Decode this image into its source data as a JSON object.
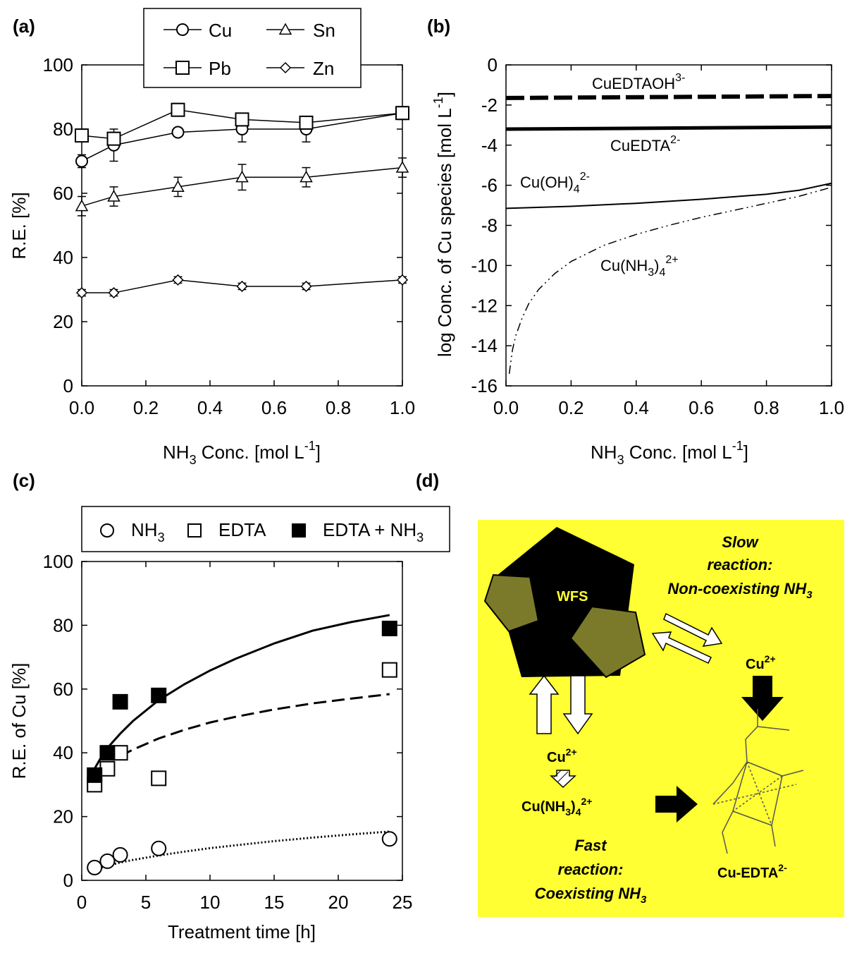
{
  "chart_data": [
    {
      "panel": "(a)",
      "type": "line",
      "xlabel": "NH3 Conc. [mol L-1]",
      "xlabel_parts": {
        "a": "NH",
        "sub": "3",
        "b": " Conc. [mol L",
        "sup": "-1",
        "c": "]"
      },
      "ylabel": "R.E. [%]",
      "xlim": [
        0.0,
        1.0
      ],
      "ylim": [
        0,
        100
      ],
      "xticks": [
        "0.0",
        "0.2",
        "0.4",
        "0.6",
        "0.8",
        "1.0"
      ],
      "yticks": [
        "0",
        "20",
        "40",
        "60",
        "80",
        "100"
      ],
      "legend_position": "top",
      "x": [
        0.0,
        0.1,
        0.3,
        0.5,
        0.7,
        1.0
      ],
      "series": [
        {
          "name": "Cu",
          "marker": "circle",
          "values": [
            70,
            75,
            79,
            80,
            80,
            85
          ],
          "errors": [
            2,
            5,
            1,
            4,
            4,
            2
          ]
        },
        {
          "name": "Sn",
          "marker": "triangle",
          "values": [
            56,
            59,
            62,
            65,
            65,
            68
          ],
          "errors": [
            3,
            3,
            3,
            4,
            3,
            3
          ]
        },
        {
          "name": "Pb",
          "marker": "square",
          "values": [
            78,
            77,
            86,
            83,
            82,
            85
          ],
          "errors": [
            2,
            2,
            2,
            2,
            2,
            2
          ]
        },
        {
          "name": "Zn",
          "marker": "diamond",
          "values": [
            29,
            29,
            33,
            31,
            31,
            33
          ],
          "errors": [
            1,
            1,
            1,
            1,
            1,
            1
          ]
        }
      ]
    },
    {
      "panel": "(b)",
      "type": "line",
      "xlabel": "NH3 Conc. [mol L-1]",
      "xlabel_parts": {
        "a": "NH",
        "sub": "3",
        "b": " Conc. [mol L",
        "sup": "-1",
        "c": "]"
      },
      "ylabel": "log Conc. of Cu species [mol L-1]",
      "ylabel_parts": {
        "a": "log Conc. of Cu species [mol L",
        "sup": "-1",
        "b": "]"
      },
      "xlim": [
        0.0,
        1.0
      ],
      "ylim": [
        -16,
        0
      ],
      "xticks": [
        "0.0",
        "0.2",
        "0.4",
        "0.6",
        "0.8",
        "1.0"
      ],
      "yticks": [
        "0",
        "-2",
        "-4",
        "-6",
        "-8",
        "-10",
        "-12",
        "-14",
        "-16"
      ],
      "series": [
        {
          "name": "CuEDTAOH3-",
          "label_parts": {
            "a": "CuEDTAOH",
            "sup": "3-"
          },
          "style": "thick-dash",
          "x": [
            0.0,
            1.0
          ],
          "values": [
            -1.65,
            -1.55
          ]
        },
        {
          "name": "CuEDTA2-",
          "label_parts": {
            "a": "CuEDTA",
            "sup": "2-"
          },
          "style": "thick-solid",
          "x": [
            0.0,
            1.0
          ],
          "values": [
            -3.2,
            -3.1
          ]
        },
        {
          "name": "Cu(OH)42-",
          "label_parts": {
            "a": "Cu(OH)",
            "sub": "4",
            "sup": "2-"
          },
          "style": "thin-solid",
          "x": [
            0.0,
            0.2,
            0.4,
            0.6,
            0.8,
            0.9,
            1.0
          ],
          "values": [
            -7.15,
            -7.05,
            -6.9,
            -6.7,
            -6.45,
            -6.25,
            -5.9
          ]
        },
        {
          "name": "Cu(NH3)42+",
          "label_parts": {
            "a": "Cu(NH",
            "sub1": "3",
            "b": ")",
            "sub2": "4",
            "sup": "2+"
          },
          "style": "dash-dot",
          "x": [
            0.01,
            0.02,
            0.03,
            0.05,
            0.07,
            0.1,
            0.15,
            0.2,
            0.3,
            0.4,
            0.5,
            0.6,
            0.7,
            0.8,
            0.9,
            1.0
          ],
          "values": [
            -15.4,
            -14.2,
            -13.5,
            -12.6,
            -11.9,
            -11.2,
            -10.4,
            -9.8,
            -9.0,
            -8.45,
            -8.0,
            -7.6,
            -7.25,
            -6.9,
            -6.55,
            -6.1
          ]
        }
      ]
    },
    {
      "panel": "(c)",
      "type": "scatter",
      "xlabel": "Treatment time [h]",
      "ylabel": "R.E. of Cu [%]",
      "xlim": [
        0,
        25
      ],
      "ylim": [
        0,
        100
      ],
      "xticks": [
        "0",
        "5",
        "10",
        "15",
        "20",
        "25"
      ],
      "yticks": [
        "0",
        "20",
        "40",
        "60",
        "80",
        "100"
      ],
      "legend_position": "top",
      "series": [
        {
          "name": "NH3",
          "label_parts": {
            "a": "NH",
            "sub": "3"
          },
          "marker": "open-circle",
          "x": [
            1,
            2,
            3,
            6,
            24
          ],
          "values": [
            4,
            6,
            8,
            10,
            13
          ],
          "fit": "dotted",
          "fit_x": [
            1,
            2,
            3,
            4,
            6,
            8,
            10,
            12,
            15,
            18,
            21,
            24
          ],
          "fit_values": [
            3.2,
            4.6,
            5.6,
            6.4,
            7.8,
            9.0,
            10.1,
            11.0,
            12.3,
            13.4,
            14.4,
            15.3
          ]
        },
        {
          "name": "EDTA",
          "label_parts": {
            "a": "EDTA"
          },
          "marker": "open-square",
          "x": [
            1,
            2,
            3,
            6,
            24
          ],
          "values": [
            30,
            35,
            40,
            32,
            66
          ],
          "fit": "dashed",
          "fit_x": [
            3,
            4,
            6,
            8,
            10,
            12,
            15,
            18,
            21,
            24
          ],
          "fit_values": [
            39,
            41,
            44.5,
            47.2,
            49.5,
            51.3,
            53.6,
            55.5,
            57.0,
            58.4
          ]
        },
        {
          "name": "EDTA + NH3",
          "label_parts": {
            "a": "EDTA + NH",
            "sub": "3"
          },
          "marker": "filled-square",
          "x": [
            1,
            2,
            3,
            6,
            24
          ],
          "values": [
            33,
            40,
            56,
            58,
            79
          ],
          "fit": "solid",
          "fit_x": [
            1,
            1.5,
            2,
            3,
            4,
            6,
            8,
            10,
            12,
            15,
            18,
            21,
            24
          ],
          "fit_values": [
            35,
            38.5,
            41.5,
            46,
            50,
            56.5,
            61.5,
            65.8,
            69.5,
            74.3,
            78.3,
            81.0,
            83.2
          ]
        }
      ]
    }
  ],
  "panels": {
    "a": "(a)",
    "b": "(b)",
    "c": "(c)",
    "d": "(d)"
  },
  "diagram": {
    "background": "#ffff33",
    "wfs": "WFS",
    "slow": [
      "Slow",
      "reaction:",
      "Non-coexisting NH"
    ],
    "slow_sub": "3",
    "fast": [
      "Fast",
      "reaction:",
      "Coexisting NH"
    ],
    "fast_sub": "3",
    "cu_ion": "Cu",
    "cu_ion_sup": "2+",
    "cu_amm": {
      "a": "Cu(NH",
      "sub": "3",
      "b": ")",
      "sub2": "4",
      "sup": "2+"
    },
    "cu_edta": {
      "a": "Cu-EDTA",
      "sup": "2-"
    }
  }
}
